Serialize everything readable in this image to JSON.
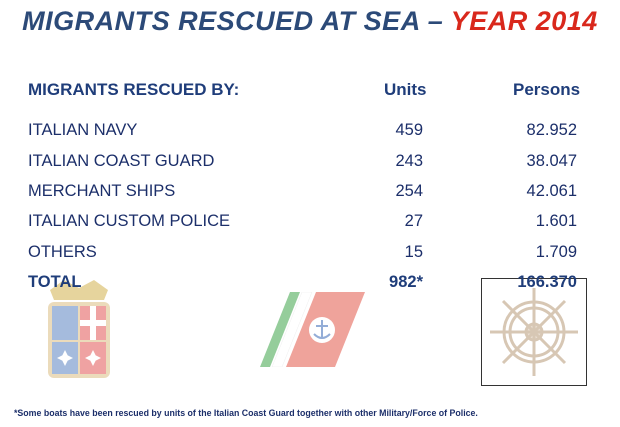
{
  "title": {
    "main": "MIGRANTS RESCUED AT SEA –",
    "year": "YEAR 2014"
  },
  "table": {
    "header": {
      "label": "MIGRANTS RESCUED BY:",
      "units": "Units",
      "persons": "Persons"
    },
    "rows": [
      {
        "label": "ITALIAN NAVY",
        "units": "459",
        "persons": "82.952"
      },
      {
        "label": "ITALIAN COAST GUARD",
        "units": "243",
        "persons": "38.047"
      },
      {
        "label": "MERCHANT SHIPS",
        "units": "254",
        "persons": "42.061"
      },
      {
        "label": "ITALIAN CUSTOM POLICE",
        "units": "27",
        "persons": "1.601"
      },
      {
        "label": "OTHERS",
        "units": "15",
        "persons": "1.709"
      }
    ],
    "total": {
      "label": "TOTAL",
      "units": "982*",
      "persons": "166.370"
    }
  },
  "footnote": "*Some boats have been rescued by units of the Italian Coast Guard together with other  Military/Force of Police.",
  "emblems": {
    "left": "italian-navy-coat-of-arms",
    "center": "coast-guard-stripe-anchor-logo",
    "right": "ship-steering-wheel"
  },
  "colors": {
    "title_blue": "#2c4a78",
    "title_red": "#d9281c",
    "text_blue": "#1c2f6a"
  }
}
